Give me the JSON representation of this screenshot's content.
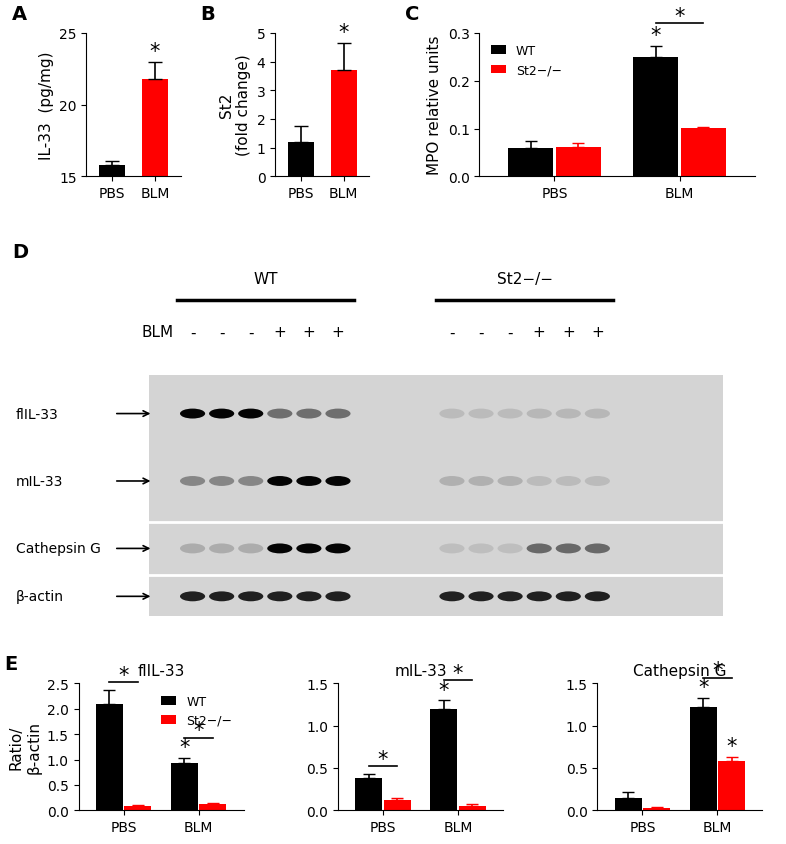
{
  "chart_data": [
    {
      "panel": "A",
      "type": "bar",
      "categories": [
        "PBS",
        "BLM"
      ],
      "values": [
        15.8,
        21.8
      ],
      "errors": [
        0.3,
        1.2
      ],
      "colors": [
        "#000000",
        "#ff0000"
      ],
      "y_label": "IL-33  (pg/mg)",
      "ylim": [
        15,
        25
      ],
      "yticks": [
        15,
        20,
        25
      ],
      "annotations": [
        {
          "text": "*",
          "category": "BLM"
        }
      ]
    },
    {
      "panel": "B",
      "type": "bar",
      "categories": [
        "PBS",
        "BLM"
      ],
      "values": [
        1.2,
        3.7
      ],
      "errors": [
        0.55,
        0.95
      ],
      "colors": [
        "#000000",
        "#ff0000"
      ],
      "y_label": "St2\n(fold change)",
      "ylim": [
        0,
        5
      ],
      "yticks": [
        0,
        1,
        2,
        3,
        4,
        5
      ],
      "annotations": [
        {
          "text": "*",
          "category": "BLM"
        }
      ]
    },
    {
      "panel": "C",
      "type": "bar",
      "categories": [
        "PBS",
        "BLM"
      ],
      "series": [
        {
          "name": "WT",
          "color": "#000000",
          "values": [
            0.06,
            0.25
          ],
          "errors": [
            0.013,
            0.023
          ]
        },
        {
          "name": "St2−/−",
          "color": "#ff0000",
          "values": [
            0.062,
            0.102
          ],
          "errors": [
            0.008,
            0.002
          ]
        }
      ],
      "y_label": "MPO relative units",
      "ylim": [
        0,
        0.3
      ],
      "yticks": [
        {
          "value": 0,
          "label": "0.0"
        },
        {
          "value": 0.1,
          "label": "0.1"
        },
        {
          "value": 0.2,
          "label": "0.2"
        },
        {
          "value": 0.3,
          "label": "0.3"
        }
      ],
      "legend": "upper left",
      "annotations": [
        {
          "text": "*",
          "series": "WT",
          "category": "BLM"
        },
        {
          "text": "*",
          "between": [
            "WT",
            "St2−/−"
          ],
          "category": "BLM"
        }
      ]
    },
    {
      "panel": "E",
      "type": "bar",
      "title": "flIL-33",
      "categories": [
        "PBS",
        "BLM"
      ],
      "series": [
        {
          "name": "WT",
          "color": "#000000",
          "values": [
            2.1,
            0.93
          ],
          "errors": [
            0.27,
            0.1
          ]
        },
        {
          "name": "St2−/−",
          "color": "#ff0000",
          "values": [
            0.08,
            0.12
          ],
          "errors": [
            0.02,
            0.03
          ]
        }
      ],
      "y_label": "Ratio/\nβ-actin",
      "ylim": [
        0,
        2.5
      ],
      "yticks": [
        {
          "value": 0,
          "label": "0.0"
        },
        {
          "value": 0.5,
          "label": "0.5"
        },
        {
          "value": 1,
          "label": "1.0"
        },
        {
          "value": 1.5,
          "label": "1.5"
        },
        {
          "value": 2,
          "label": "2.0"
        },
        {
          "value": 2.5,
          "label": "2.5"
        }
      ],
      "legend": "upper right",
      "annotations": [
        {
          "text": "*",
          "between": [
            "WT",
            "St2−/−"
          ],
          "category": "PBS"
        },
        {
          "text": "*",
          "series": "WT",
          "category": "BLM"
        },
        {
          "text": "*",
          "between": [
            "WT",
            "St2−/−"
          ],
          "category": "BLM"
        }
      ]
    },
    {
      "type": "bar",
      "title": "mIL-33",
      "categories": [
        "PBS",
        "BLM"
      ],
      "series": [
        {
          "name": "WT",
          "color": "#000000",
          "values": [
            0.38,
            1.2
          ],
          "errors": [
            0.05,
            0.1
          ]
        },
        {
          "name": "St2−/−",
          "color": "#ff0000",
          "values": [
            0.12,
            0.05
          ],
          "errors": [
            0.03,
            0.02
          ]
        }
      ],
      "ylim": [
        0,
        1.5
      ],
      "yticks": [
        {
          "value": 0,
          "label": "0.0"
        },
        {
          "value": 0.5,
          "label": "0.5"
        },
        {
          "value": 1,
          "label": "1.0"
        },
        {
          "value": 1.5,
          "label": "1.5"
        }
      ],
      "annotations": [
        {
          "text": "*",
          "between": [
            "WT",
            "St2−/−"
          ],
          "category": "PBS"
        },
        {
          "text": "*",
          "series": "WT",
          "category": "BLM"
        },
        {
          "text": "*",
          "between": [
            "WT",
            "St2−/−"
          ],
          "category": "BLM"
        }
      ]
    },
    {
      "type": "bar",
      "title": "Cathepsin G",
      "categories": [
        "PBS",
        "BLM"
      ],
      "series": [
        {
          "name": "WT",
          "color": "#000000",
          "values": [
            0.14,
            1.22
          ],
          "errors": [
            0.07,
            0.11
          ]
        },
        {
          "name": "St2−/−",
          "color": "#ff0000",
          "values": [
            0.03,
            0.58
          ],
          "errors": [
            0.01,
            0.05
          ]
        }
      ],
      "ylim": [
        0,
        1.5
      ],
      "yticks": [
        {
          "value": 0,
          "label": "0.0"
        },
        {
          "value": 0.5,
          "label": "0.5"
        },
        {
          "value": 1,
          "label": "1.0"
        },
        {
          "value": 1.5,
          "label": "1.5"
        }
      ],
      "annotations": [
        {
          "text": "*",
          "series": "WT",
          "category": "BLM"
        },
        {
          "text": "*",
          "series": "St2−/−",
          "category": "BLM"
        },
        {
          "text": "*",
          "between": [
            "WT",
            "St2−/−"
          ],
          "category": "BLM"
        }
      ]
    }
  ],
  "blot": {
    "panel": "D",
    "row_label": "BLM",
    "signs": {
      "PBS": "-",
      "BLM": "+"
    },
    "groups": [
      {
        "label": "WT",
        "lanes": [
          "PBS",
          "PBS",
          "PBS",
          "BLM",
          "BLM",
          "BLM"
        ]
      },
      {
        "label": "St2−/−",
        "lanes": [
          "PBS",
          "PBS",
          "PBS",
          "BLM",
          "BLM",
          "BLM"
        ]
      }
    ],
    "bands": [
      "flIL-33",
      "mIL-33",
      "Cathepsin G",
      "β-actin"
    ]
  }
}
